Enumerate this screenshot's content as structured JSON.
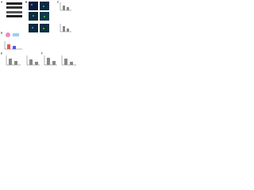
{
  "panels": [
    "A",
    "B",
    "C",
    "D",
    "E",
    "F"
  ]
}
